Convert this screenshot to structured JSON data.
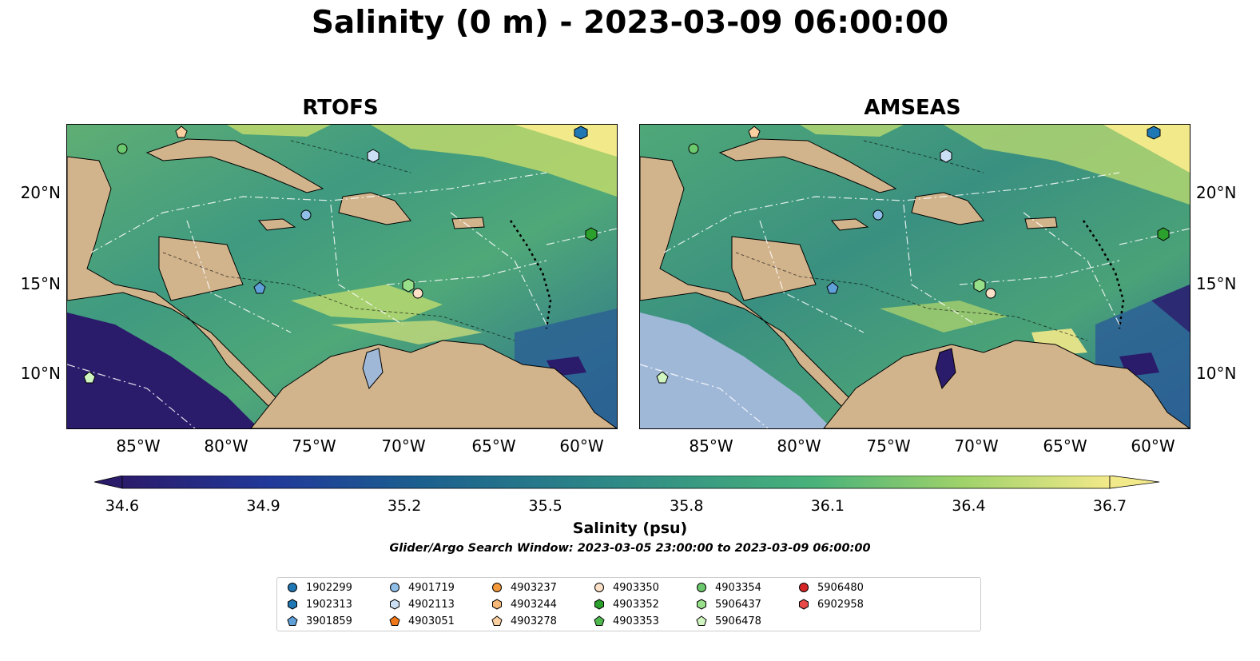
{
  "title": "Salinity (0 m) - 2023-03-09 06:00:00",
  "panels": [
    {
      "title": "RTOFS"
    },
    {
      "title": "AMSEAS"
    }
  ],
  "x_ticks": [
    "85°W",
    "80°W",
    "75°W",
    "70°W",
    "65°W",
    "60°W"
  ],
  "y_ticks": [
    "20°N",
    "15°N",
    "10°N"
  ],
  "colorbar": {
    "label": "Salinity (psu)",
    "ticks": [
      "34.6",
      "34.9",
      "35.2",
      "35.5",
      "35.8",
      "36.1",
      "36.4",
      "36.7"
    ],
    "colormap": "summer/viridis-like (dark navy to pale yellow)",
    "min": 34.6,
    "max": 36.7
  },
  "search_window": "Glider/Argo Search Window: 2023-03-05 23:00:00 to 2023-03-09 06:00:00",
  "colors": {
    "land": "#d2b48c",
    "river_lake": "#a0b8d8",
    "low_salinity": "#2b1b6b",
    "high_salinity": "#f2e98a"
  },
  "legend": [
    {
      "label": "1902299",
      "marker": "circle",
      "color": "#1f77b4"
    },
    {
      "label": "1902313",
      "marker": "hexagon",
      "color": "#1f77b4"
    },
    {
      "label": "3901859",
      "marker": "pentagon",
      "color": "#5fa0d8"
    },
    {
      "label": "4901719",
      "marker": "circle",
      "color": "#8fbfe8"
    },
    {
      "label": "4902113",
      "marker": "hexagon",
      "color": "#cce0f5"
    },
    {
      "label": "4903051",
      "marker": "pentagon",
      "color": "#f07818"
    },
    {
      "label": "4903237",
      "marker": "circle",
      "color": "#f59a3a"
    },
    {
      "label": "4903244",
      "marker": "hexagon",
      "color": "#f8b878"
    },
    {
      "label": "4903278",
      "marker": "pentagon",
      "color": "#fbd0a0"
    },
    {
      "label": "4903350",
      "marker": "circle",
      "color": "#fde0c8"
    },
    {
      "label": "4903352",
      "marker": "hexagon",
      "color": "#2ca02c"
    },
    {
      "label": "4903353",
      "marker": "pentagon",
      "color": "#4fb84f"
    },
    {
      "label": "4903354",
      "marker": "circle",
      "color": "#6cc86c"
    },
    {
      "label": "5906437",
      "marker": "hexagon",
      "color": "#98df8a"
    },
    {
      "label": "5906478",
      "marker": "pentagon",
      "color": "#d0f5c0"
    },
    {
      "label": "5906480",
      "marker": "circle",
      "color": "#d62728"
    },
    {
      "label": "6902958",
      "marker": "hexagon",
      "color": "#e84848"
    }
  ]
}
